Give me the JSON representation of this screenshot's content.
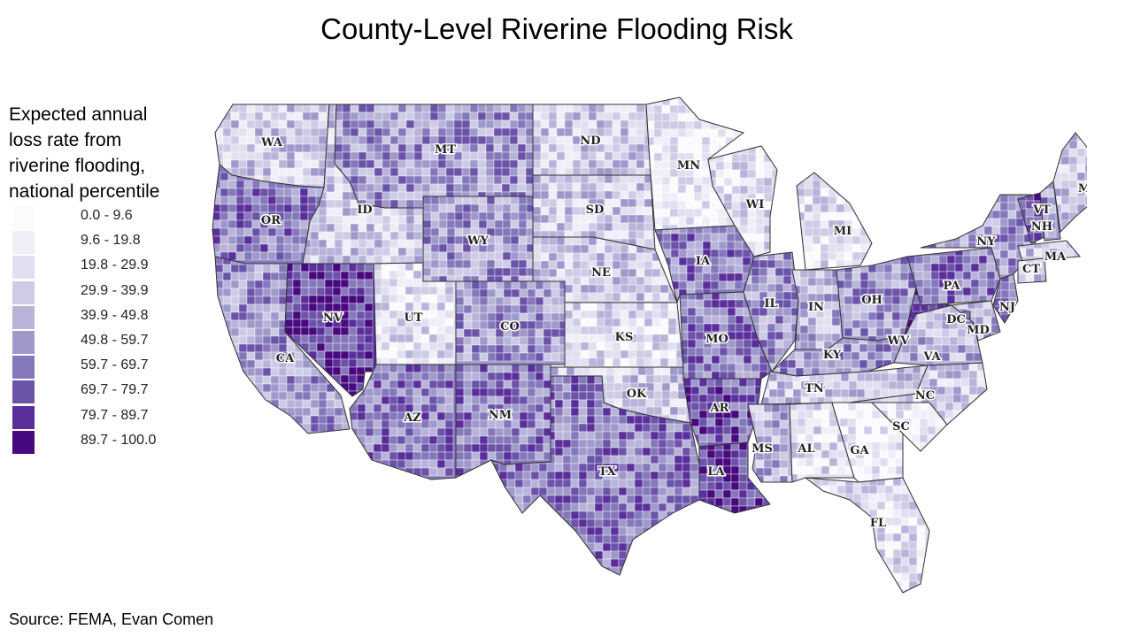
{
  "title": "County-Level Riverine Flooding Risk",
  "legend": {
    "title_lines": [
      "Expected annual",
      "loss rate from",
      "riverine flooding,",
      "national percentile"
    ],
    "items": [
      {
        "range": "0.0 - 9.6",
        "color": "#fbfbfe"
      },
      {
        "range": "9.6 - 19.8",
        "color": "#f0eff8"
      },
      {
        "range": "19.8 - 29.9",
        "color": "#e1dff0"
      },
      {
        "range": "29.9 - 39.9",
        "color": "#cecbe6"
      },
      {
        "range": "39.9 - 49.8",
        "color": "#b7b3d9"
      },
      {
        "range": "49.8 - 59.7",
        "color": "#9f98cb"
      },
      {
        "range": "59.7 - 69.7",
        "color": "#8478bb"
      },
      {
        "range": "69.7 - 79.7",
        "color": "#6c53aa"
      },
      {
        "range": "79.7 - 89.7",
        "color": "#5a2f9c"
      },
      {
        "range": "89.7 - 100.0",
        "color": "#48087e"
      }
    ]
  },
  "states": [
    {
      "abbr": "WA",
      "level": 3
    },
    {
      "abbr": "OR",
      "level": 6
    },
    {
      "abbr": "CA",
      "level": 5
    },
    {
      "abbr": "NV",
      "level": 8
    },
    {
      "abbr": "ID",
      "level": 3
    },
    {
      "abbr": "MT",
      "level": 5
    },
    {
      "abbr": "WY",
      "level": 5
    },
    {
      "abbr": "UT",
      "level": 2
    },
    {
      "abbr": "AZ",
      "level": 6
    },
    {
      "abbr": "CO",
      "level": 5
    },
    {
      "abbr": "NM",
      "level": 6
    },
    {
      "abbr": "ND",
      "level": 3
    },
    {
      "abbr": "SD",
      "level": 3
    },
    {
      "abbr": "NE",
      "level": 3
    },
    {
      "abbr": "KS",
      "level": 2
    },
    {
      "abbr": "OK",
      "level": 3
    },
    {
      "abbr": "TX",
      "level": 6
    },
    {
      "abbr": "MN",
      "level": 1
    },
    {
      "abbr": "IA",
      "level": 6
    },
    {
      "abbr": "MO",
      "level": 6
    },
    {
      "abbr": "AR",
      "level": 7
    },
    {
      "abbr": "LA",
      "level": 8
    },
    {
      "abbr": "WI",
      "level": 2
    },
    {
      "abbr": "IL",
      "level": 5
    },
    {
      "abbr": "MI",
      "level": 2
    },
    {
      "abbr": "IN",
      "level": 4
    },
    {
      "abbr": "OH",
      "level": 5
    },
    {
      "abbr": "KY",
      "level": 5
    },
    {
      "abbr": "TN",
      "level": 3
    },
    {
      "abbr": "MS",
      "level": 4
    },
    {
      "abbr": "AL",
      "level": 2
    },
    {
      "abbr": "GA",
      "level": 1
    },
    {
      "abbr": "FL",
      "level": 2
    },
    {
      "abbr": "SC",
      "level": 1
    },
    {
      "abbr": "NC",
      "level": 3
    },
    {
      "abbr": "VA",
      "level": 4
    },
    {
      "abbr": "WV",
      "level": 8
    },
    {
      "abbr": "PA",
      "level": 6
    },
    {
      "abbr": "NY",
      "level": 5
    },
    {
      "abbr": "VT",
      "level": 7
    },
    {
      "abbr": "NH",
      "level": 5
    },
    {
      "abbr": "ME",
      "level": 3
    },
    {
      "abbr": "MA",
      "level": 3
    },
    {
      "abbr": "CT",
      "level": 3
    },
    {
      "abbr": "NJ",
      "level": 6
    },
    {
      "abbr": "MD",
      "level": 4
    },
    {
      "abbr": "DC",
      "level": 4
    }
  ],
  "source": "Source: FEMA, Evan Comen"
}
